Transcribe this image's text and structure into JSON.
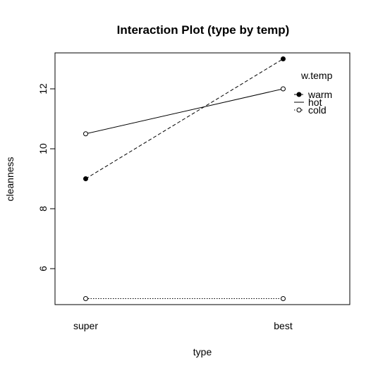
{
  "chart_data": {
    "type": "line",
    "title": "Interaction Plot (type by temp)",
    "xlabel": "type",
    "ylabel": "cleanness",
    "categories": [
      "super",
      "best"
    ],
    "ylim": [
      4.8,
      13.2
    ],
    "yticks": [
      6,
      8,
      10,
      12
    ],
    "series": [
      {
        "name": "warm",
        "values": [
          9,
          13
        ],
        "line": "dashed",
        "marker": "filled"
      },
      {
        "name": "hot",
        "values": [
          10.5,
          12
        ],
        "line": "solid",
        "marker": "open"
      },
      {
        "name": "cold",
        "values": [
          5,
          5
        ],
        "line": "dotted",
        "marker": "open"
      }
    ],
    "legend": {
      "title": "w.temp",
      "position": "top-right"
    }
  }
}
